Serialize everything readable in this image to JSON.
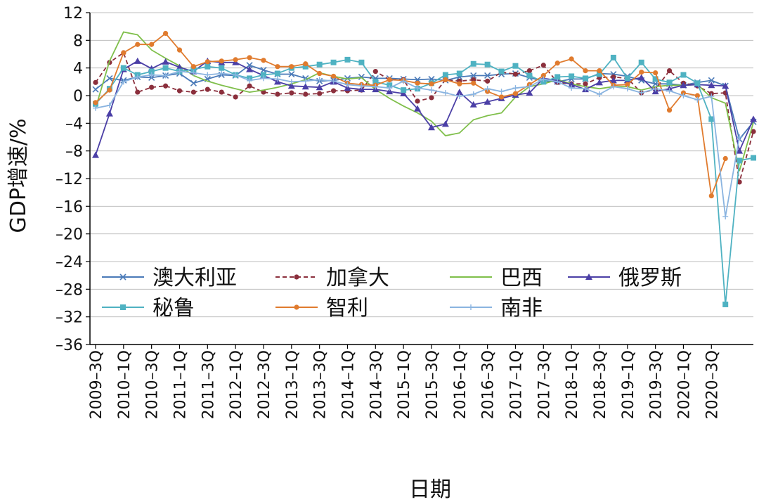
{
  "chart_data": {
    "type": "line",
    "xlabel": "日期",
    "ylabel": "GDP增速/%",
    "ylim": [
      -36,
      12
    ],
    "yticks": [
      12,
      8,
      4,
      0,
      -4,
      -8,
      -12,
      -16,
      -20,
      -24,
      -28,
      -32,
      -36
    ],
    "xticks": [
      "2009–3Q",
      "2010–1Q",
      "2010–3Q",
      "2011–1Q",
      "2011–3Q",
      "2012–1Q",
      "2012–3Q",
      "2013–1Q",
      "2013–3Q",
      "2014–1Q",
      "2014–3Q",
      "2015–1Q",
      "2015–3Q",
      "2016–1Q",
      "2016–3Q",
      "2017–1Q",
      "2017–3Q",
      "2018–1Q",
      "2018–3Q",
      "2019–1Q",
      "2019–3Q",
      "2020–1Q",
      "2020–3Q"
    ],
    "legend_position": "bottom-left-inside",
    "grid": "horizontal",
    "series": [
      {
        "name": "澳大利亚",
        "color": "#4a7ab8",
        "dash": "solid",
        "marker": "x",
        "values": [
          0.9,
          2.5,
          2.2,
          2.7,
          2.6,
          2.9,
          3.2,
          1.8,
          2.4,
          3.0,
          2.9,
          4.4,
          3.7,
          3.1,
          3.1,
          2.5,
          2.1,
          2.2,
          2.5,
          2.7,
          2.5,
          2.5,
          2.4,
          2.3,
          2.4,
          2.2,
          2.7,
          2.9,
          2.9,
          3.1,
          3.2,
          2.6,
          2.1,
          2.0,
          2.4,
          2.4,
          3.2,
          3.1,
          2.8,
          2.2,
          1.7,
          1.7,
          1.5,
          1.9,
          2.2,
          1.4,
          -6.3,
          -3.8
        ]
      },
      {
        "name": "加拿大",
        "color": "#8b2f3c",
        "dash": "6 4",
        "marker": "circle",
        "values": [
          1.9,
          4.8,
          6.2,
          0.5,
          1.2,
          1.4,
          0.7,
          0.5,
          0.9,
          0.5,
          -0.2,
          1.4,
          0.5,
          0.2,
          0.4,
          0.2,
          0.3,
          0.7,
          0.7,
          0.8,
          3.5,
          2.3,
          2.3,
          -0.8,
          -0.3,
          2.3,
          2.1,
          2.3,
          2.1,
          3.4,
          3.1,
          3.6,
          4.4,
          1.9,
          1.7,
          1.7,
          2.6,
          2.7,
          2.5,
          0.4,
          0.9,
          3.6,
          1.8,
          1.4,
          0.3,
          0.4,
          -12.5,
          -5.2
        ]
      },
      {
        "name": "巴西",
        "color": "#7fbf4a",
        "dash": "solid",
        "marker": "none",
        "values": [
          -1.8,
          5.0,
          9.2,
          8.8,
          6.6,
          5.4,
          4.3,
          2.9,
          2.1,
          1.5,
          1.0,
          0.5,
          0.8,
          1.2,
          1.7,
          2.3,
          3.3,
          2.8,
          2.4,
          2.6,
          0.9,
          -0.4,
          -1.5,
          -2.5,
          -3.7,
          -5.8,
          -5.4,
          -3.5,
          -2.9,
          -2.5,
          -0.2,
          1.3,
          1.7,
          2.3,
          1.7,
          1.3,
          1.0,
          1.3,
          1.3,
          0.8,
          1.3,
          1.5,
          1.5,
          1.6,
          -0.3,
          -1.1,
          -10.9,
          -3.9
        ]
      },
      {
        "name": "俄罗斯",
        "color": "#4b3fa6",
        "dash": "solid",
        "marker": "triangle",
        "values": [
          -8.6,
          -2.6,
          3.8,
          5.0,
          3.9,
          4.9,
          4.1,
          3.5,
          5.0,
          4.8,
          4.8,
          3.8,
          2.9,
          2.0,
          1.4,
          1.3,
          1.2,
          2.0,
          1.1,
          0.9,
          0.9,
          0.6,
          0.3,
          -1.9,
          -4.6,
          -4.1,
          0.5,
          -1.3,
          -0.9,
          -0.4,
          0.1,
          0.4,
          2.5,
          2.2,
          1.6,
          0.9,
          1.9,
          2.2,
          2.2,
          2.6,
          0.6,
          1.0,
          1.5,
          1.6,
          1.5,
          1.4,
          -8.0,
          -3.4
        ]
      },
      {
        "name": "秘鲁",
        "color": "#4fb2c2",
        "dash": "solid",
        "marker": "square",
        "values": [
          -1.2,
          1.0,
          4.0,
          3.0,
          3.5,
          4.0,
          3.5,
          3.8,
          4.2,
          4.0,
          3.0,
          2.5,
          3.0,
          3.2,
          4.0,
          4.2,
          4.5,
          4.8,
          5.2,
          4.8,
          2.0,
          1.5,
          0.8,
          1.0,
          1.8,
          3.0,
          3.2,
          4.6,
          4.5,
          3.5,
          4.3,
          2.9,
          2.0,
          2.7,
          2.8,
          2.5,
          3.1,
          5.5,
          2.5,
          4.8,
          2.4,
          1.9,
          3.0,
          1.8,
          -3.4,
          -30.2,
          -9.4,
          -9.0
        ]
      },
      {
        "name": "智利",
        "color": "#e07b2e",
        "dash": "solid",
        "marker": "circle",
        "values": [
          -1.0,
          0.8,
          6.2,
          7.4,
          7.4,
          9.0,
          6.6,
          4.2,
          4.9,
          5.0,
          5.2,
          5.5,
          5.1,
          4.2,
          4.2,
          4.6,
          3.2,
          2.8,
          1.8,
          1.6,
          1.5,
          2.3,
          2.2,
          1.8,
          1.7,
          2.3,
          1.7,
          1.8,
          0.6,
          -0.2,
          0.3,
          1.6,
          2.9,
          4.7,
          5.3,
          3.6,
          3.6,
          1.5,
          1.6,
          3.4,
          3.3,
          -2.1,
          0.4,
          0.0,
          -14.5,
          -9.1
        ]
      },
      {
        "name": "南非",
        "color": "#8ab4e0",
        "dash": "solid",
        "marker": "plus",
        "values": [
          -1.8,
          -1.4,
          2.0,
          2.7,
          3.0,
          2.9,
          3.5,
          3.3,
          3.0,
          3.2,
          3.0,
          2.2,
          2.5,
          2.4,
          2.0,
          2.1,
          2.3,
          2.1,
          1.6,
          1.4,
          1.3,
          1.1,
          2.1,
          1.1,
          0.8,
          0.4,
          -0.1,
          0.2,
          1.0,
          0.6,
          1.1,
          1.3,
          2.4,
          2.0,
          1.1,
          1.0,
          0.2,
          1.3,
          1.0,
          0.4,
          1.0,
          0.7,
          0.0,
          -0.6,
          -0.1,
          -17.5,
          -6.0
        ]
      }
    ]
  }
}
